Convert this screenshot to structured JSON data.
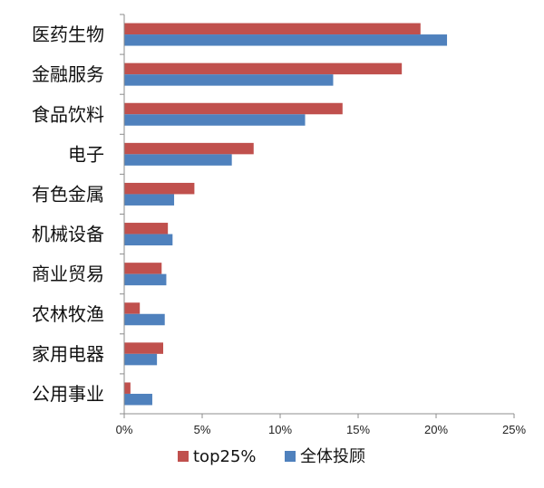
{
  "chart_data": {
    "type": "bar",
    "orientation": "horizontal",
    "categories": [
      "医药生物",
      "金融服务",
      "食品饮料",
      "电子",
      "有色金属",
      "机械设备",
      "商业贸易",
      "农林牧渔",
      "家用电器",
      "公用事业"
    ],
    "series": [
      {
        "name": "top25%",
        "color": "#c0504d",
        "values": [
          19.0,
          17.8,
          14.0,
          8.3,
          4.5,
          2.8,
          2.4,
          1.0,
          2.5,
          0.4
        ]
      },
      {
        "name": "全体投顾",
        "color": "#4f81bd",
        "values": [
          20.7,
          13.4,
          11.6,
          6.9,
          3.2,
          3.1,
          2.7,
          2.6,
          2.1,
          1.8
        ]
      }
    ],
    "xlim": [
      0,
      25
    ],
    "xticks": [
      "0%",
      "5%",
      "10%",
      "15%",
      "20%",
      "25%"
    ],
    "xtick_values": [
      0,
      5,
      10,
      15,
      20,
      25
    ],
    "grid": false,
    "legend_position": "bottom"
  }
}
